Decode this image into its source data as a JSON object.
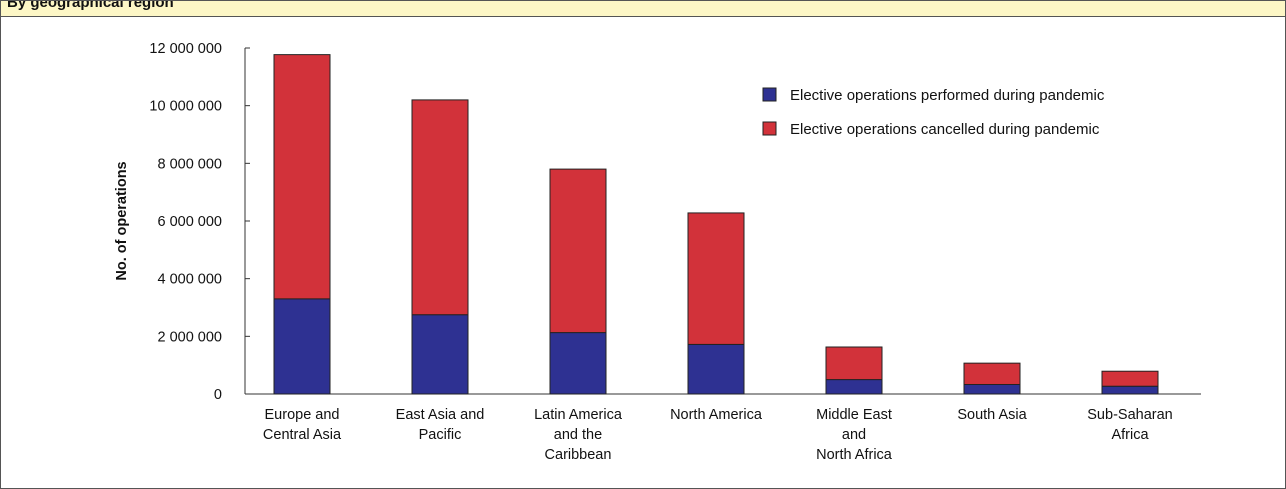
{
  "header": {
    "title": "By geographical region"
  },
  "chart_data": {
    "type": "bar",
    "stacked": true,
    "categories": [
      [
        "Europe and",
        "Central Asia"
      ],
      [
        "East Asia and",
        "Pacific"
      ],
      [
        "Latin America",
        "and the",
        "Caribbean"
      ],
      [
        "North America"
      ],
      [
        "Middle East",
        "and",
        "North Africa"
      ],
      [
        "South Asia"
      ],
      [
        "Sub-Saharan",
        "Africa"
      ]
    ],
    "series": [
      {
        "name": "Elective operations performed during pandemic",
        "color": "#2e3192",
        "values": [
          3300000,
          2750000,
          2130000,
          1720000,
          500000,
          330000,
          270000
        ]
      },
      {
        "name": "Elective operations cancelled during pandemic",
        "color": "#d2323a",
        "values": [
          8470000,
          7450000,
          5670000,
          4560000,
          1130000,
          740000,
          520000
        ]
      }
    ],
    "xlabel": "",
    "ylabel": "No. of operations",
    "ylim": [
      0,
      12000000
    ],
    "yticks": [
      0,
      2000000,
      4000000,
      6000000,
      8000000,
      10000000,
      12000000
    ],
    "ytick_labels": [
      "0",
      "2 000 000",
      "4 000 000",
      "6 000 000",
      "8 000 000",
      "10 000 000",
      "12 000 000"
    ],
    "grid": false,
    "legend_position": "top-right"
  }
}
